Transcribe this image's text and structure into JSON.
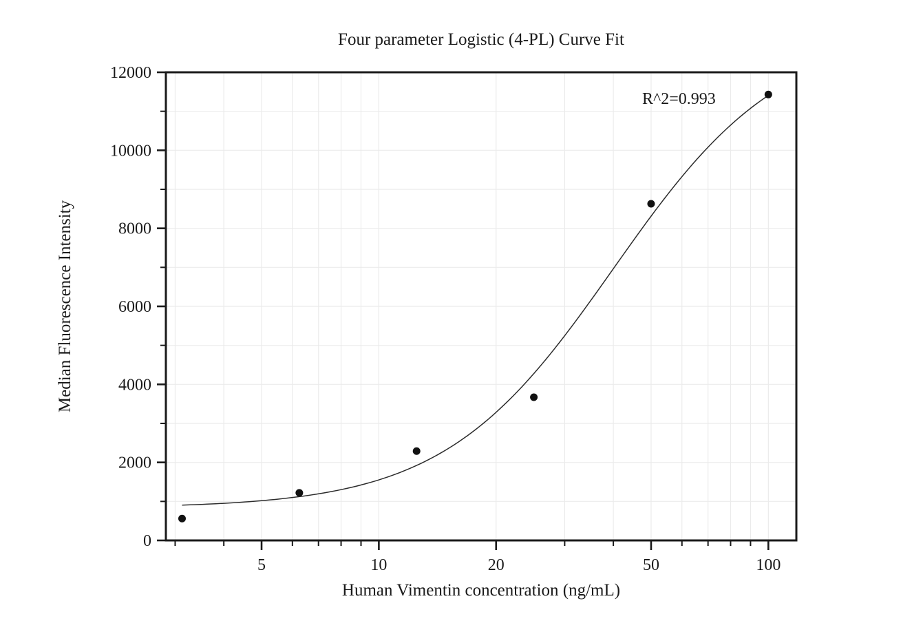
{
  "chart_data": {
    "type": "scatter",
    "title": "Four parameter Logistic (4-PL) Curve Fit",
    "xlabel": "Human Vimentin concentration (ng/mL)",
    "ylabel": "Median Fluorescence Intensity",
    "x_scale": "log10",
    "points": {
      "x": [
        3.125,
        6.25,
        12.5,
        25,
        50,
        100
      ],
      "y": [
        560,
        1220,
        2290,
        3670,
        8630,
        11430
      ]
    },
    "fit_curve": {
      "model": "4PL",
      "bottom": 830,
      "top": 13100,
      "ec50": 40,
      "hill": 2.0,
      "x_start": 3.125,
      "x_end": 100
    },
    "annotation": {
      "text": "R^2=0.993"
    },
    "axes": {
      "xlim": [
        2.84,
        118
      ],
      "ylim": [
        0,
        12000
      ],
      "x_major_ticks": [
        5,
        10,
        20,
        50,
        100
      ],
      "x_minor_ticks": [
        3,
        4,
        6,
        7,
        8,
        9,
        30,
        40,
        60,
        70,
        80,
        90
      ],
      "y_major_ticks": [
        0,
        2000,
        4000,
        6000,
        8000,
        10000,
        12000
      ],
      "y_minor_ticks": [
        1000,
        3000,
        5000,
        7000,
        9000,
        11000
      ],
      "grid": "minor-and-major",
      "legend": false
    },
    "colors": {
      "marker": "#111111",
      "curve": "#2b2b2b",
      "grid": "#ebebeb",
      "axis": "#1a1a1a",
      "text": "#1a1a1a",
      "background": "#ffffff"
    }
  }
}
